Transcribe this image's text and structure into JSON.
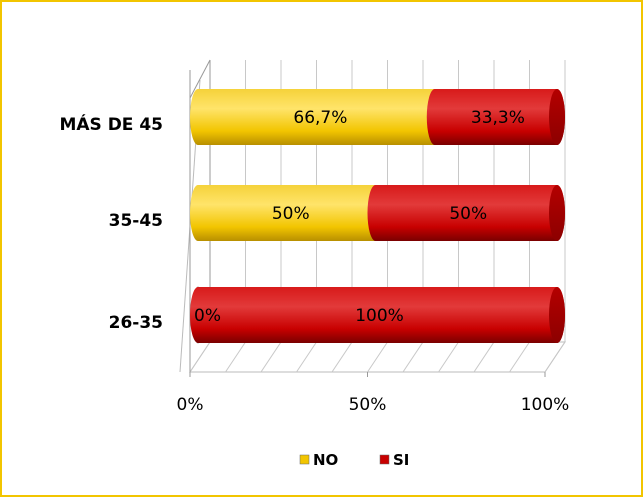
{
  "chart_data": {
    "type": "bar",
    "orientation": "horizontal",
    "stacked": "percent",
    "style": "3d-cylinder",
    "categories": [
      "26-35",
      "35-45",
      "MÁS DE 45"
    ],
    "series": [
      {
        "name": "NO",
        "values": [
          0,
          50,
          66.7
        ],
        "labels": [
          "0%",
          "50%",
          "66,7%"
        ],
        "color": "#f2c500"
      },
      {
        "name": "SI",
        "values": [
          100,
          50,
          33.3
        ],
        "labels": [
          "100%",
          "50%",
          "33,3%"
        ],
        "color": "#c80000"
      }
    ],
    "x_ticks": [
      "0%",
      "50%",
      "100%"
    ],
    "xlim": [
      0,
      100
    ],
    "grid": true,
    "legend_position": "bottom",
    "frame_color": "#f2c500"
  }
}
